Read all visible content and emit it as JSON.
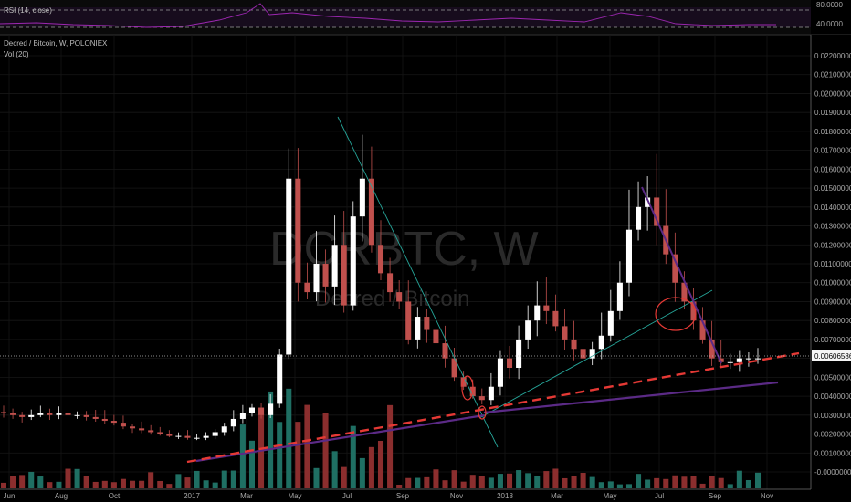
{
  "header": {
    "title": "Decred / Bitcoin, W, POLONIEX",
    "volume_label": "Vol (20)",
    "rsi_label": "RSI (14, close)"
  },
  "watermark": {
    "symbol": "DCRBTC, W",
    "name": "Decred / Bitcoin"
  },
  "current_price_label": "0.00606586",
  "colors": {
    "up_candle": "#ffffff",
    "down_candle": "#c0504d",
    "up_volume": "#1f6f63",
    "down_volume": "#8b2e2e",
    "rsi_line": "#9c27b0",
    "trend_green": "#26a69a",
    "trend_purple": "#5b2a86",
    "trend_red_dashed": "#e53935",
    "circle_red": "#e53935"
  },
  "chart_data": {
    "type": "candlestick",
    "x_tick_labels": [
      "Jun",
      "Aug",
      "Oct",
      "2017",
      "Mar",
      "May",
      "Jul",
      "Sep",
      "Nov",
      "2018",
      "Mar",
      "May",
      "Jul",
      "Sep",
      "Nov"
    ],
    "y_tick_labels": [
      "0.02200000",
      "0.02100000",
      "0.02000000",
      "0.01900000",
      "0.01800000",
      "0.01700000",
      "0.01600000",
      "0.01500000",
      "0.01400000",
      "0.01300000",
      "0.01200000",
      "0.01100000",
      "0.01000000",
      "0.00900000",
      "0.00800000",
      "0.00700000",
      "0.00600000",
      "0.00500000",
      "0.00400000",
      "0.00300000",
      "0.00200000",
      "0.00100000",
      "-0.00000000"
    ],
    "ylim": [
      0,
      0.0225
    ],
    "rsi_tick_labels": [
      "80.0000",
      "40.0000"
    ],
    "rsi_ylim": [
      20,
      90
    ],
    "candles_close_approx": [
      0.0031,
      0.003,
      0.0029,
      0.003,
      0.0031,
      0.003,
      0.0031,
      0.003,
      0.003,
      0.0029,
      0.0028,
      0.0027,
      0.0026,
      0.0024,
      0.0023,
      0.0022,
      0.0021,
      0.002,
      0.0019,
      0.0019,
      0.0018,
      0.0018,
      0.0019,
      0.0021,
      0.0024,
      0.0028,
      0.0031,
      0.0034,
      0.003,
      0.0036,
      0.0062,
      0.0155,
      0.01,
      0.0095,
      0.011,
      0.0098,
      0.012,
      0.0088,
      0.0135,
      0.0155,
      0.012,
      0.0105,
      0.0095,
      0.009,
      0.007,
      0.0082,
      0.0075,
      0.0068,
      0.006,
      0.005,
      0.0045,
      0.004,
      0.0038,
      0.0045,
      0.006,
      0.0055,
      0.007,
      0.008,
      0.0088,
      0.0085,
      0.0077,
      0.007,
      0.0065,
      0.006,
      0.0065,
      0.0072,
      0.0085,
      0.01,
      0.0128,
      0.014,
      0.0145,
      0.013,
      0.0115,
      0.01,
      0.009,
      0.008,
      0.007,
      0.006,
      0.0058,
      0.0058,
      0.006,
      0.006,
      0.006
    ]
  }
}
